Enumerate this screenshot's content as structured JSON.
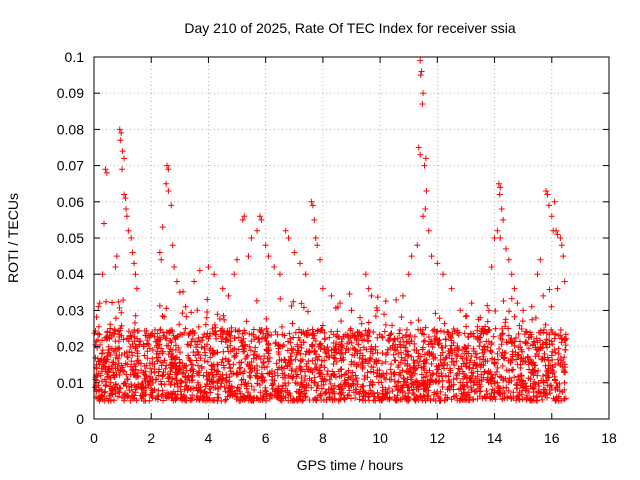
{
  "chart_data": {
    "type": "scatter",
    "title": "Day 210 of 2025, Rate Of TEC Index for receiver ssia",
    "xlabel": "GPS time / hours",
    "ylabel": "ROTI / TECUs",
    "xlim": [
      0,
      18
    ],
    "ylim": [
      0,
      0.1
    ],
    "x_ticks": [
      0,
      2,
      4,
      6,
      8,
      10,
      12,
      14,
      16,
      18
    ],
    "x_tick_labels": [
      "0",
      "2",
      "4",
      "6",
      "8",
      "10",
      "12",
      "14",
      "16",
      "18"
    ],
    "y_ticks": [
      0,
      0.01,
      0.02,
      0.03,
      0.04,
      0.05,
      0.06,
      0.07,
      0.08,
      0.09,
      0.1
    ],
    "y_tick_labels": [
      "0",
      "0.01",
      "0.02",
      "0.03",
      "0.04",
      "0.05",
      "0.06",
      "0.07",
      "0.08",
      "0.09",
      "0.1"
    ],
    "grid": true,
    "marker": "plus",
    "color": "#ff0000",
    "x_range_of_data": [
      0,
      16.5
    ],
    "baseline_band": [
      0.005,
      0.025
    ],
    "series": [
      {
        "points": [
          [
            0.4,
            0.069
          ],
          [
            0.45,
            0.068
          ],
          [
            0.35,
            0.054
          ],
          [
            0.3,
            0.04
          ],
          [
            0.2,
            0.032
          ],
          [
            0.15,
            0.031
          ],
          [
            0.9,
            0.08
          ],
          [
            0.95,
            0.079
          ],
          [
            0.92,
            0.077
          ],
          [
            1.0,
            0.074
          ],
          [
            1.05,
            0.072
          ],
          [
            0.98,
            0.069
          ],
          [
            1.05,
            0.062
          ],
          [
            1.1,
            0.061
          ],
          [
            1.12,
            0.058
          ],
          [
            1.15,
            0.056
          ],
          [
            1.2,
            0.052
          ],
          [
            1.3,
            0.05
          ],
          [
            1.35,
            0.046
          ],
          [
            1.4,
            0.043
          ],
          [
            1.45,
            0.04
          ],
          [
            1.5,
            0.036
          ],
          [
            0.8,
            0.045
          ],
          [
            0.75,
            0.042
          ],
          [
            2.55,
            0.07
          ],
          [
            2.6,
            0.069
          ],
          [
            2.52,
            0.065
          ],
          [
            2.6,
            0.063
          ],
          [
            2.7,
            0.059
          ],
          [
            2.4,
            0.053
          ],
          [
            2.3,
            0.046
          ],
          [
            2.35,
            0.044
          ],
          [
            2.75,
            0.048
          ],
          [
            2.8,
            0.042
          ],
          [
            2.9,
            0.038
          ],
          [
            3.0,
            0.035
          ],
          [
            3.2,
            0.031
          ],
          [
            3.5,
            0.038
          ],
          [
            3.7,
            0.041
          ],
          [
            4.0,
            0.042
          ],
          [
            4.2,
            0.04
          ],
          [
            4.5,
            0.036
          ],
          [
            4.7,
            0.034
          ],
          [
            4.9,
            0.04
          ],
          [
            5.0,
            0.044
          ],
          [
            5.2,
            0.055
          ],
          [
            5.25,
            0.056
          ],
          [
            5.4,
            0.045
          ],
          [
            5.5,
            0.05
          ],
          [
            5.7,
            0.052
          ],
          [
            5.8,
            0.056
          ],
          [
            5.85,
            0.055
          ],
          [
            6.0,
            0.048
          ],
          [
            6.1,
            0.045
          ],
          [
            6.3,
            0.042
          ],
          [
            6.5,
            0.04
          ],
          [
            6.7,
            0.052
          ],
          [
            6.8,
            0.05
          ],
          [
            7.0,
            0.046
          ],
          [
            7.2,
            0.043
          ],
          [
            7.4,
            0.04
          ],
          [
            7.6,
            0.06
          ],
          [
            7.65,
            0.059
          ],
          [
            7.7,
            0.055
          ],
          [
            7.75,
            0.05
          ],
          [
            7.8,
            0.048
          ],
          [
            7.9,
            0.044
          ],
          [
            8.0,
            0.036
          ],
          [
            8.3,
            0.034
          ],
          [
            8.6,
            0.032
          ],
          [
            9.0,
            0.03
          ],
          [
            9.3,
            0.028
          ],
          [
            9.5,
            0.04
          ],
          [
            9.6,
            0.036
          ],
          [
            9.7,
            0.034
          ],
          [
            9.9,
            0.03
          ],
          [
            10.2,
            0.026
          ],
          [
            10.5,
            0.022
          ],
          [
            10.8,
            0.034
          ],
          [
            11.0,
            0.04
          ],
          [
            11.1,
            0.045
          ],
          [
            11.3,
            0.048
          ],
          [
            11.4,
            0.099
          ],
          [
            11.45,
            0.096
          ],
          [
            11.42,
            0.095
          ],
          [
            11.5,
            0.09
          ],
          [
            11.48,
            0.087
          ],
          [
            11.35,
            0.075
          ],
          [
            11.4,
            0.073
          ],
          [
            11.6,
            0.072
          ],
          [
            11.55,
            0.07
          ],
          [
            11.62,
            0.063
          ],
          [
            11.58,
            0.058
          ],
          [
            11.5,
            0.056
          ],
          [
            11.7,
            0.052
          ],
          [
            11.8,
            0.045
          ],
          [
            12.0,
            0.043
          ],
          [
            12.2,
            0.04
          ],
          [
            12.5,
            0.036
          ],
          [
            12.8,
            0.03
          ],
          [
            13.2,
            0.032
          ],
          [
            13.5,
            0.028
          ],
          [
            13.8,
            0.03
          ],
          [
            13.9,
            0.042
          ],
          [
            14.0,
            0.05
          ],
          [
            14.1,
            0.052
          ],
          [
            14.15,
            0.065
          ],
          [
            14.2,
            0.064
          ],
          [
            14.18,
            0.062
          ],
          [
            14.25,
            0.058
          ],
          [
            14.3,
            0.055
          ],
          [
            14.2,
            0.05
          ],
          [
            14.4,
            0.047
          ],
          [
            14.5,
            0.044
          ],
          [
            14.6,
            0.04
          ],
          [
            14.7,
            0.036
          ],
          [
            14.8,
            0.032
          ],
          [
            15.0,
            0.03
          ],
          [
            15.3,
            0.031
          ],
          [
            15.5,
            0.04
          ],
          [
            15.6,
            0.044
          ],
          [
            15.8,
            0.063
          ],
          [
            15.85,
            0.062
          ],
          [
            15.9,
            0.059
          ],
          [
            16.0,
            0.056
          ],
          [
            16.05,
            0.052
          ],
          [
            16.1,
            0.06
          ],
          [
            16.15,
            0.052
          ],
          [
            16.2,
            0.051
          ],
          [
            16.3,
            0.05
          ],
          [
            16.35,
            0.048
          ],
          [
            16.4,
            0.045
          ],
          [
            16.45,
            0.038
          ],
          [
            15.7,
            0.034
          ],
          [
            16.2,
            0.036
          ]
        ]
      }
    ]
  }
}
